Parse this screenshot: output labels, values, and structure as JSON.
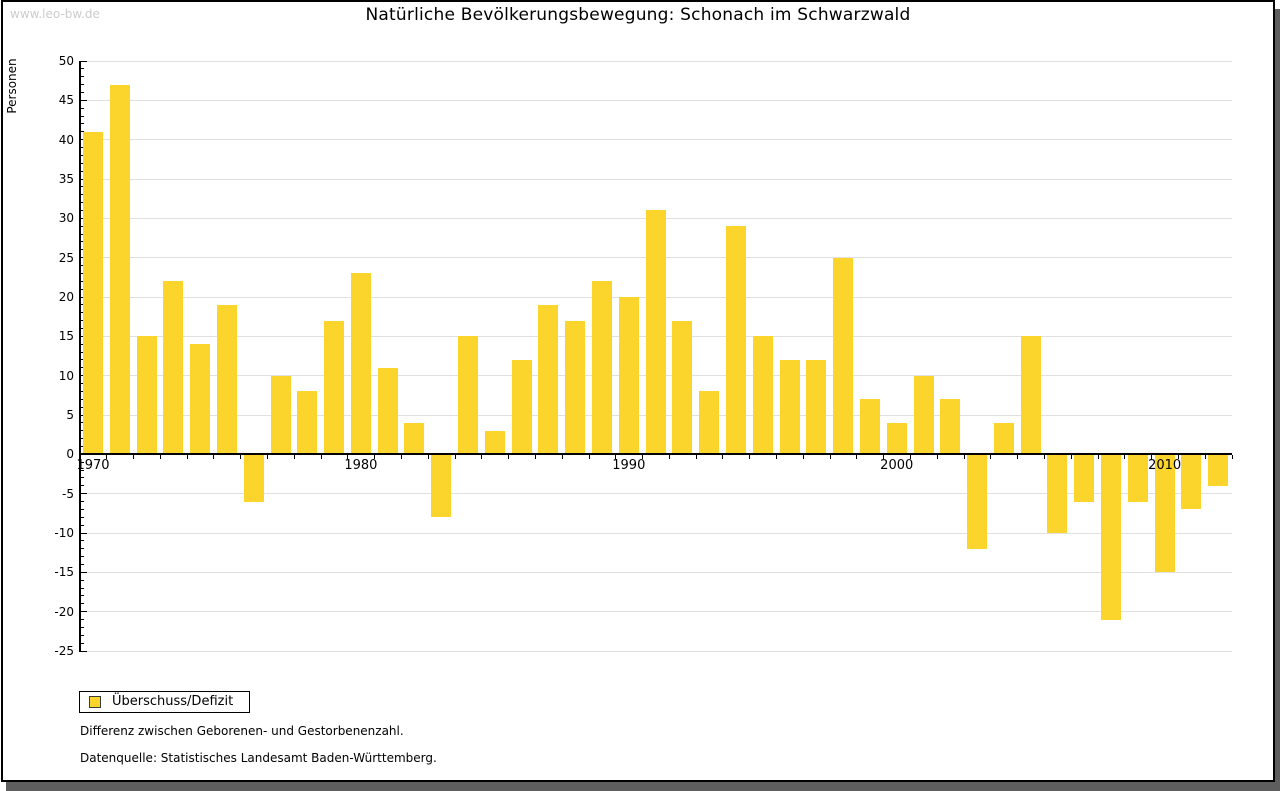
{
  "watermark": "www.leo-bw.de",
  "title": "Natürliche Bevölkerungsbewegung: Schonach im Schwarzwald",
  "legend": {
    "label": "Überschuss/Defizit"
  },
  "notes": {
    "line1": "Differenz zwischen Geborenen- und Gestorbenenzahl.",
    "line2": "Datenquelle: Statistisches Landesamt Baden-Württemberg."
  },
  "colors": {
    "bar": "#FBD42C",
    "grid": "#e0e0e0",
    "axis": "#000000",
    "watermark": "#cccccc",
    "shadow": "#5e5e5e"
  },
  "chart_data": {
    "type": "bar",
    "title": "Natürliche Bevölkerungsbewegung: Schonach im Schwarzwald",
    "xlabel": "",
    "ylabel": "Personen",
    "series_name": "Überschuss/Defizit",
    "x": [
      1970,
      1971,
      1972,
      1973,
      1974,
      1975,
      1976,
      1977,
      1978,
      1979,
      1980,
      1981,
      1982,
      1983,
      1984,
      1985,
      1986,
      1987,
      1988,
      1989,
      1990,
      1991,
      1992,
      1993,
      1994,
      1995,
      1996,
      1997,
      1998,
      1999,
      2000,
      2001,
      2002,
      2003,
      2004,
      2005,
      2006,
      2007,
      2008,
      2009,
      2010,
      2011,
      2012
    ],
    "values": [
      41,
      47,
      15,
      22,
      14,
      19,
      -6,
      10,
      8,
      17,
      23,
      11,
      4,
      -8,
      15,
      3,
      12,
      19,
      17,
      22,
      20,
      31,
      17,
      8,
      29,
      15,
      12,
      12,
      25,
      7,
      4,
      10,
      7,
      -12,
      4,
      15,
      -10,
      -6,
      -21,
      -6,
      -15,
      -7,
      -4
    ],
    "ylim": [
      -25,
      50
    ],
    "ytick_step": 5,
    "ytick_minor_step": 1,
    "xtick_labels": [
      "1970",
      "1980",
      "1990",
      "2000",
      "2010"
    ],
    "xtick_label_years": [
      1970,
      1980,
      1990,
      2000,
      2010
    ],
    "grid": true,
    "legend_position": "bottom-left"
  }
}
